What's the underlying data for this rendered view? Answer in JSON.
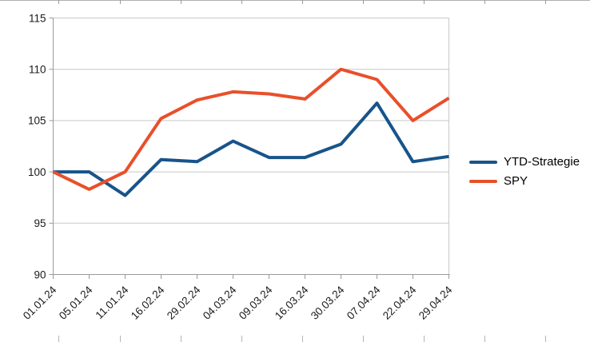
{
  "chart_data": {
    "type": "line",
    "title": "",
    "xlabel": "",
    "ylabel": "",
    "categories": [
      "01.01.24",
      "05.01.24",
      "11.01.24",
      "16.02.24",
      "29.02.24",
      "04.03.24",
      "09.03.24",
      "16.03.24",
      "30.03.24",
      "07.04.24",
      "22.04.24",
      "29.04.24"
    ],
    "series": [
      {
        "name": "YTD-Strategie",
        "color": "#17548a",
        "values": [
          100,
          100,
          97.7,
          101.2,
          101,
          103,
          101.4,
          101.4,
          102.7,
          106.7,
          101,
          101.5
        ]
      },
      {
        "name": "SPY",
        "color": "#e8502a",
        "values": [
          100,
          98.3,
          100,
          105.2,
          107,
          107.8,
          107.6,
          107.1,
          110,
          109,
          105,
          107.2
        ]
      }
    ],
    "ylim": [
      90,
      115
    ],
    "y_ticks": [
      90,
      95,
      100,
      105,
      110,
      115
    ],
    "grid": "horizontal-only",
    "legend_position": "right-middle",
    "grid_color": "#c8c8c8",
    "axis_color": "#9a9a9a",
    "label_color": "#1a1a1a"
  }
}
